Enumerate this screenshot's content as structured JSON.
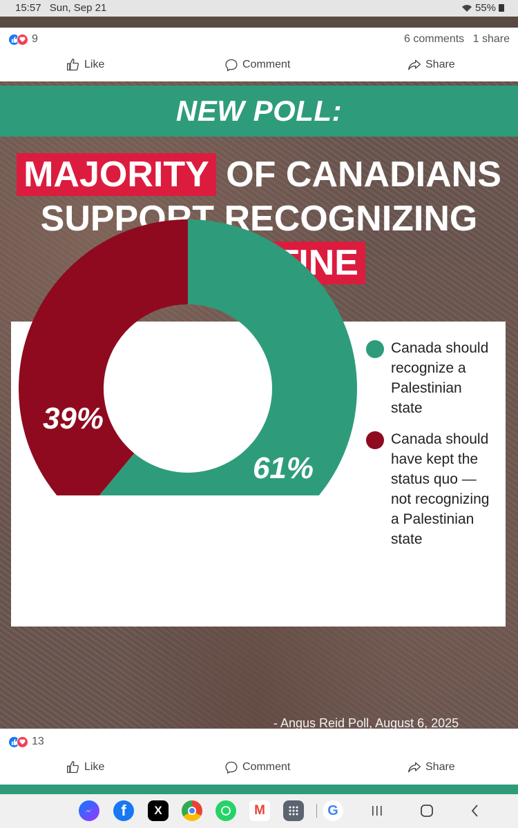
{
  "status_bar": {
    "time": "15:57",
    "date": "Sun, Sep 21",
    "battery": "55%"
  },
  "prev_post": {
    "reaction_count": "9",
    "comments": "6 comments",
    "shares": "1 share"
  },
  "actions": {
    "like": "Like",
    "comment": "Comment",
    "share": "Share"
  },
  "post": {
    "banner": "NEW POLL:",
    "headline": {
      "line1_highlight": "MAJORITY",
      "line1_rest": "OF CANADIANS",
      "line2": "SUPPORT RECOGNIZING",
      "line3_highlight": "PALESTINE"
    },
    "source": "- Angus Reid Poll, August 6, 2025",
    "reaction_count": "13"
  },
  "colors": {
    "teal": "#2e9c7a",
    "crimson": "#8f0a1f",
    "highlight_red": "#dc1c3e"
  },
  "chart_data": {
    "type": "pie",
    "donut": true,
    "series": [
      {
        "name": "Canada should recognize a Palestinian state",
        "value": 61,
        "label": "61%",
        "color": "#2e9c7a"
      },
      {
        "name": "Canada should have kept the status quo — not recognizing a Palestinian state",
        "value": 39,
        "label": "39%",
        "color": "#8f0a1f"
      }
    ],
    "legend_placement": "right"
  },
  "nav_apps": [
    {
      "name": "messenger-icon"
    },
    {
      "name": "facebook-icon"
    },
    {
      "name": "x-icon"
    },
    {
      "name": "chrome-icon"
    },
    {
      "name": "whatsapp-icon"
    },
    {
      "name": "gmail-icon"
    },
    {
      "name": "apps-grid-icon"
    },
    {
      "name": "google-icon"
    }
  ]
}
